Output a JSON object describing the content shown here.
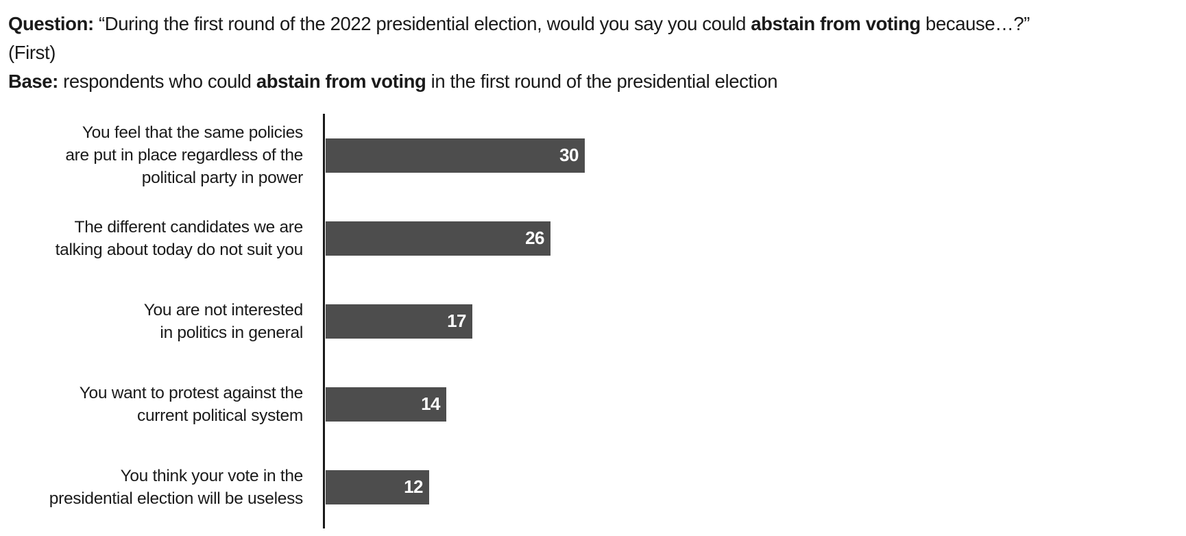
{
  "page": {
    "background": "#ffffff",
    "text_color": "#1a1a1a"
  },
  "header": {
    "question_segments": [
      {
        "text": "Question:",
        "bold": true
      },
      {
        "text": " “During the first round of the 2022 presidential election, would you say you could ",
        "bold": false
      },
      {
        "text": "abstain from voting",
        "bold": true
      },
      {
        "text": " because…?”",
        "bold": false
      }
    ],
    "question_note": "(First)",
    "base_segments": [
      {
        "text": "Base:",
        "bold": true
      },
      {
        "text": " respondents who could ",
        "bold": false
      },
      {
        "text": "abstain from voting",
        "bold": true
      },
      {
        "text": " in the first round of the presidential election",
        "bold": false
      }
    ]
  },
  "chart_data": {
    "type": "bar",
    "orientation": "horizontal",
    "title": "",
    "xlabel": "",
    "ylabel": "",
    "xlim": [
      0,
      30
    ],
    "grid": false,
    "legend": false,
    "value_labels_position": "inside-end",
    "bar_color": "#4d4d4d",
    "value_label_color": "#ffffff",
    "axis_color": "#1a1a1a",
    "categories": [
      "You feel that the same policies are put in place regardless of the political party in power",
      "The different candidates we are talking about today do not suit you",
      "You are not interested in politics in general",
      "You want to protest against the current political system",
      "You think your vote in the presidential election will be useless"
    ],
    "label_lines": [
      [
        "You feel that the same policies",
        "are put in place regardless of the",
        "political party in power"
      ],
      [
        "The different candidates we are",
        "talking about today do not suit you"
      ],
      [
        "You are not interested",
        "in politics in general"
      ],
      [
        "You want to protest against the",
        "current political system"
      ],
      [
        "You think your vote in the",
        "presidential election will be useless"
      ]
    ],
    "values": [
      30,
      26,
      17,
      14,
      12
    ]
  }
}
